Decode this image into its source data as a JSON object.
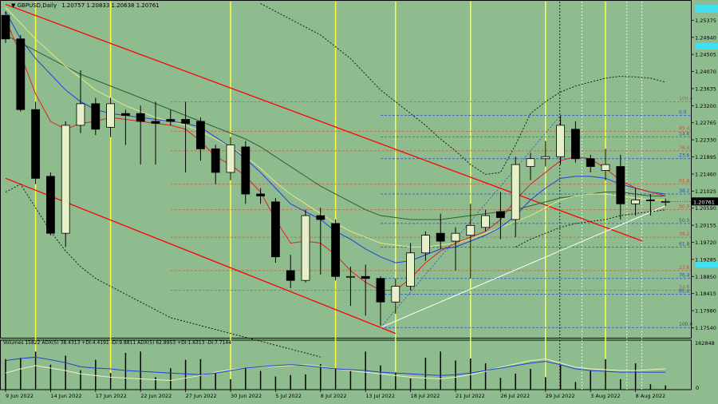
{
  "header": {
    "symbol": "GBPUSD,Daily",
    "ohlc": "1.20757 1.20833 1.20638 1.20761"
  },
  "volume_panel_label": "Volumes 15822  ADX(5) 38.4313 +DI:4.4191 -DI:9.8811  ADX(5) 62.8953 +DI:1.6313 -DI:7.7144",
  "volume_scale": {
    "top": "162848",
    "bottom": "0"
  },
  "colors": {
    "background": "#8fbc8f",
    "up": "#e6f0c8",
    "down": "#000000",
    "channel": "#ff0000",
    "trend": "#ffffff",
    "highlight": "#40e0f0",
    "fib_red": "#d05030",
    "fib_blue": "#2050d0",
    "vline": "#ffff40"
  },
  "chart_data": {
    "type": "candlestick",
    "title": "GBPUSD,Daily",
    "ylim": [
      1.1729,
      1.2585
    ],
    "y_ticks": [
      "1.25375",
      "1.24940",
      "1.24505",
      "1.24070",
      "1.23635",
      "1.23200",
      "1.22765",
      "1.22330",
      "1.21895",
      "1.21460",
      "1.21025",
      "1.20590",
      "1.20155",
      "1.19720",
      "1.19285",
      "1.18850",
      "1.18415",
      "1.17980",
      "1.17540"
    ],
    "last_price": "1.20761",
    "x_labels": [
      {
        "i": 0,
        "t": "9 Jun 2022"
      },
      {
        "i": 3,
        "t": "14 Jun 2022"
      },
      {
        "i": 6,
        "t": "17 Jun 2022"
      },
      {
        "i": 9,
        "t": "22 Jun 2022"
      },
      {
        "i": 12,
        "t": "27 Jun 2022"
      },
      {
        "i": 15,
        "t": "30 Jun 2022"
      },
      {
        "i": 18,
        "t": "5 Jul 2022"
      },
      {
        "i": 21,
        "t": "8 Jul 2022"
      },
      {
        "i": 24,
        "t": "13 Jul 2022"
      },
      {
        "i": 27,
        "t": "18 Jul 2022"
      },
      {
        "i": 30,
        "t": "21 Jul 2022"
      },
      {
        "i": 33,
        "t": "26 Jul 2022"
      },
      {
        "i": 36,
        "t": "29 Jul 2022"
      },
      {
        "i": 39,
        "t": "3 Aug 2022"
      },
      {
        "i": 42,
        "t": "8 Aug 2022"
      }
    ],
    "candles": [
      [
        1.255,
        1.256,
        1.248,
        1.249
      ],
      [
        1.249,
        1.25,
        1.2305,
        1.231
      ],
      [
        1.231,
        1.233,
        1.212,
        1.2135
      ],
      [
        1.214,
        1.215,
        1.199,
        1.1995
      ],
      [
        1.1995,
        1.228,
        1.196,
        1.227
      ],
      [
        1.227,
        1.241,
        1.225,
        1.2325
      ],
      [
        1.2325,
        1.234,
        1.2245,
        1.226
      ],
      [
        1.2265,
        1.234,
        1.224,
        1.2325
      ],
      [
        1.23,
        1.231,
        1.222,
        1.2295
      ],
      [
        1.23,
        1.232,
        1.217,
        1.228
      ],
      [
        1.228,
        1.233,
        1.217,
        1.2275
      ],
      [
        1.2285,
        1.231,
        1.227,
        1.228
      ],
      [
        1.2285,
        1.233,
        1.215,
        1.2275
      ],
      [
        1.228,
        1.229,
        1.218,
        1.221
      ],
      [
        1.221,
        1.222,
        1.212,
        1.215
      ],
      [
        1.215,
        1.224,
        1.213,
        1.222
      ],
      [
        1.2215,
        1.223,
        1.207,
        1.2095
      ],
      [
        1.2095,
        1.211,
        1.207,
        1.209
      ],
      [
        1.2075,
        1.2085,
        1.192,
        1.1935
      ],
      [
        1.19,
        1.194,
        1.1855,
        1.1875
      ],
      [
        1.1875,
        1.2055,
        1.187,
        1.204
      ],
      [
        1.204,
        1.206,
        1.189,
        1.203
      ],
      [
        1.202,
        1.203,
        1.1875,
        1.1885
      ],
      [
        1.1885,
        1.191,
        1.181,
        1.1885
      ],
      [
        1.1885,
        1.1915,
        1.1785,
        1.188
      ],
      [
        1.188,
        1.1885,
        1.176,
        1.182
      ],
      [
        1.182,
        1.188,
        1.179,
        1.186
      ],
      [
        1.186,
        1.197,
        1.185,
        1.1945
      ],
      [
        1.1945,
        1.2,
        1.1925,
        1.199
      ],
      [
        1.1995,
        1.2045,
        1.1955,
        1.1975
      ],
      [
        1.1975,
        1.201,
        1.19,
        1.1995
      ],
      [
        1.199,
        1.207,
        1.188,
        1.2015
      ],
      [
        1.201,
        1.2055,
        1.2,
        1.204
      ],
      [
        1.205,
        1.21,
        1.198,
        1.2035
      ],
      [
        1.203,
        1.219,
        1.1985,
        1.217
      ],
      [
        1.2165,
        1.22,
        1.213,
        1.2185
      ],
      [
        1.2185,
        1.223,
        1.2165,
        1.219
      ],
      [
        1.219,
        1.2295,
        1.217,
        1.227
      ],
      [
        1.226,
        1.228,
        1.2175,
        1.2185
      ],
      [
        1.2185,
        1.2195,
        1.215,
        1.2165
      ],
      [
        1.2155,
        1.221,
        1.213,
        1.217
      ],
      [
        1.2165,
        1.2195,
        1.203,
        1.207
      ],
      [
        1.207,
        1.211,
        1.204,
        1.208
      ],
      [
        1.208,
        1.2095,
        1.204,
        1.2078
      ],
      [
        1.20757,
        1.20833,
        1.20638,
        1.20761
      ]
    ],
    "ma_red": [
      1.254,
      1.245,
      1.235,
      1.228,
      1.226,
      1.2275,
      1.228,
      1.229,
      1.2285,
      1.228,
      1.2275,
      1.227,
      1.226,
      1.223,
      1.219,
      1.217,
      1.214,
      1.21,
      1.203,
      1.197,
      1.1975,
      1.197,
      1.194,
      1.19,
      1.187,
      1.185,
      1.185,
      1.188,
      1.192,
      1.195,
      1.197,
      1.1985,
      1.2,
      1.203,
      1.208,
      1.212,
      1.215,
      1.218,
      1.219,
      1.2185,
      1.216,
      1.213,
      1.211,
      1.21,
      1.209
    ],
    "ma_blue": [
      1.256,
      1.249,
      1.244,
      1.24,
      1.236,
      1.233,
      1.231,
      1.23,
      1.2295,
      1.229,
      1.2285,
      1.228,
      1.2275,
      1.2265,
      1.224,
      1.2215,
      1.2185,
      1.215,
      1.211,
      1.207,
      1.205,
      1.203,
      1.2,
      1.198,
      1.1955,
      1.1935,
      1.192,
      1.1925,
      1.194,
      1.1955,
      1.196,
      1.1975,
      1.199,
      1.201,
      1.204,
      1.208,
      1.211,
      1.2135,
      1.214,
      1.214,
      1.2135,
      1.212,
      1.211,
      1.21,
      1.2095
    ],
    "ma_yellow": [
      1.257,
      1.253,
      1.249,
      1.2455,
      1.242,
      1.239,
      1.236,
      1.234,
      1.232,
      1.2305,
      1.229,
      1.228,
      1.227,
      1.2255,
      1.2235,
      1.2215,
      1.219,
      1.216,
      1.2125,
      1.2095,
      1.207,
      1.2045,
      1.202,
      1.2,
      1.1985,
      1.197,
      1.1965,
      1.196,
      1.196,
      1.1965,
      1.197,
      1.198,
      1.1995,
      1.201,
      1.2025,
      1.204,
      1.206,
      1.208,
      1.209,
      1.2095,
      1.2095,
      1.209,
      1.2085,
      1.208,
      1.208
    ],
    "ma_dark": [
      1.25,
      1.248,
      1.246,
      1.244,
      1.242,
      1.24,
      1.2385,
      1.237,
      1.2355,
      1.234,
      1.2325,
      1.231,
      1.2295,
      1.228,
      1.2265,
      1.225,
      1.2235,
      1.2215,
      1.219,
      1.2165,
      1.214,
      1.2115,
      1.2095,
      1.2075,
      1.2055,
      1.204,
      1.2035,
      1.203,
      1.203,
      1.203,
      1.2035,
      1.204,
      1.2045,
      1.205,
      1.2055,
      1.2065,
      1.2075,
      1.2085,
      1.209,
      1.2095,
      1.21,
      1.21,
      1.2095,
      1.209,
      1.209
    ],
    "bb_upper": [
      null,
      null,
      null,
      null,
      null,
      null,
      null,
      null,
      null,
      null,
      null,
      null,
      null,
      null,
      null,
      null,
      null,
      1.258,
      1.256,
      1.254,
      1.252,
      1.25,
      1.247,
      1.244,
      1.24,
      1.236,
      1.233,
      1.23,
      1.227,
      1.2235,
      1.2205,
      1.217,
      1.2145,
      1.215,
      1.222,
      1.23,
      1.233,
      1.2355,
      1.237,
      1.238,
      1.239,
      1.2395,
      1.2393,
      1.239,
      1.238
    ],
    "bb_lower": [
      1.21,
      1.212,
      1.206,
      1.2,
      1.195,
      1.191,
      1.188,
      1.186,
      1.184,
      1.182,
      1.18,
      1.178,
      1.177,
      1.176,
      1.175,
      1.174,
      1.173,
      1.172,
      1.171,
      1.17,
      1.169,
      1.168,
      null,
      null,
      null,
      null,
      null,
      null,
      null,
      null,
      null,
      null,
      null,
      null,
      1.196,
      1.198,
      1.1995,
      1.201,
      1.202,
      1.2025,
      1.203,
      1.204,
      1.2045,
      1.205,
      1.2055
    ],
    "fib_red": [
      {
        "label": "100.0",
        "y": 1.233
      },
      {
        "label": "85.4",
        "y": 1.2255
      },
      {
        "label": "76.4",
        "y": 1.2205
      },
      {
        "label": "61.8",
        "y": 1.212
      },
      {
        "label": "50.0",
        "y": 1.2055
      },
      {
        "label": "38.2",
        "y": 1.1985
      },
      {
        "label": "23.6",
        "y": 1.19
      },
      {
        "label": "14.6",
        "y": 1.185
      }
    ],
    "fib_blue": [
      {
        "label": "0.0",
        "y": 1.2295
      },
      {
        "label": "14.6",
        "y": 1.224
      },
      {
        "label": "23.6",
        "y": 1.2185
      },
      {
        "label": "38.2",
        "y": 1.2095
      },
      {
        "label": "50.0",
        "y": 1.202
      },
      {
        "label": "61.8",
        "y": 1.196
      },
      {
        "label": "76.4",
        "y": 1.188
      },
      {
        "label": "85.4",
        "y": 1.184
      },
      {
        "label": "100.0",
        "y": 1.1755
      }
    ],
    "vlines_yellow": [
      2,
      7,
      15,
      22,
      26,
      31,
      36,
      40
    ],
    "volumes": [
      88,
      92,
      110,
      72,
      98,
      56,
      86,
      48,
      106,
      110,
      36,
      62,
      86,
      88,
      48,
      30,
      62,
      54,
      38,
      42,
      44,
      74,
      62,
      54,
      110,
      70,
      50,
      32,
      92,
      110,
      84,
      90,
      76,
      34,
      46,
      60,
      36,
      72,
      22,
      56,
      88,
      30,
      76,
      16,
      12
    ],
    "adx_blue": [
      70,
      75,
      78,
      72,
      65,
      55,
      52,
      50,
      46,
      44,
      42,
      40,
      38,
      36,
      40,
      46,
      52,
      55,
      58,
      60,
      58,
      54,
      50,
      48,
      46,
      42,
      40,
      38,
      36,
      34,
      36,
      40,
      46,
      52,
      58,
      64,
      68,
      60,
      50,
      46,
      44,
      42,
      42,
      42,
      42
    ],
    "adx_white": [
      40,
      50,
      58,
      52,
      46,
      38,
      34,
      30,
      28,
      26,
      24,
      22,
      28,
      34,
      42,
      48,
      52,
      54,
      56,
      58,
      60,
      56,
      50,
      46,
      42,
      38,
      34,
      30,
      28,
      26,
      30,
      36,
      44,
      54,
      62,
      70,
      74,
      64,
      54,
      50,
      48,
      46,
      46,
      48,
      50
    ]
  }
}
